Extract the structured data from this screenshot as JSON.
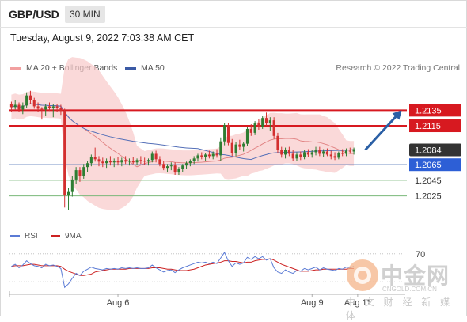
{
  "header": {
    "pair": "GBP/USD",
    "timeframe": "30 MIN",
    "datetime": "Tuesday, August 9, 2022 7:03:38 AM CET"
  },
  "legend": {
    "ma20_label": "MA 20 + Bollinger Bands",
    "ma50_label": "MA 50",
    "credit": "Research © 2022 Trading Central"
  },
  "rsi_legend": {
    "rsi_label": "RSI",
    "ma_label": "9MA"
  },
  "watermark": {
    "text": "中金网",
    "url": "CNGOLD.COM.CN",
    "sub": "中 文 财 经 新 媒 体"
  },
  "colors": {
    "bull": "#2e7d32",
    "bear": "#d32f2f",
    "bollinger": "#f8c9c9",
    "ma20": "#e08080",
    "ma50": "#5570b8",
    "resistance": "#d71920",
    "support_line": "#4a6fb5",
    "target_line": "#7ab87a",
    "current_tag": "#333333",
    "arrow": "#2a5fa5",
    "rsi": "#5b7bd5",
    "rsi_ma": "#cc2222"
  },
  "chart_data": {
    "type": "candlestick",
    "ylim": [
      1.199,
      1.2175
    ],
    "x_labels": [
      {
        "index": 28,
        "label": "Aug 6"
      },
      {
        "index": 79,
        "label": "Aug 9"
      },
      {
        "index": 91,
        "label": "Aug 11"
      }
    ],
    "levels": [
      {
        "label": "1.2135",
        "value": 1.2135,
        "kind": "resistance"
      },
      {
        "label": "1.2115",
        "value": 1.2115,
        "kind": "resistance"
      },
      {
        "label": "1.2084",
        "value": 1.2084,
        "kind": "current"
      },
      {
        "label": "1.2065",
        "value": 1.2065,
        "kind": "pivot"
      },
      {
        "label": "1.2045",
        "value": 1.2045,
        "kind": "support"
      },
      {
        "label": "1.2025",
        "value": 1.2025,
        "kind": "support"
      }
    ],
    "arrow": {
      "from_index": 93,
      "from_value": 1.2084,
      "to_index": 102,
      "to_value": 1.2132
    },
    "candles": [
      [
        1.2143,
        1.2146,
        1.2133,
        1.2139
      ],
      [
        1.2139,
        1.2148,
        1.2136,
        1.2142
      ],
      [
        1.2142,
        1.2145,
        1.2133,
        1.2136
      ],
      [
        1.2136,
        1.2145,
        1.213,
        1.2141
      ],
      [
        1.2141,
        1.2158,
        1.2138,
        1.2154
      ],
      [
        1.2154,
        1.216,
        1.2143,
        1.2148
      ],
      [
        1.2148,
        1.2151,
        1.2137,
        1.214
      ],
      [
        1.214,
        1.2145,
        1.2133,
        1.2137
      ],
      [
        1.2137,
        1.2139,
        1.2123,
        1.2136
      ],
      [
        1.2136,
        1.2143,
        1.2128,
        1.214
      ],
      [
        1.214,
        1.2145,
        1.2134,
        1.2138
      ],
      [
        1.2138,
        1.2143,
        1.2126,
        1.214
      ],
      [
        1.214,
        1.2143,
        1.2133,
        1.2138
      ],
      [
        1.2138,
        1.2142,
        1.2129,
        1.2134
      ],
      [
        1.2134,
        1.2137,
        1.201,
        1.2026
      ],
      [
        1.2026,
        1.2035,
        1.2007,
        1.203
      ],
      [
        1.203,
        1.205,
        1.2024,
        1.2046
      ],
      [
        1.2046,
        1.2062,
        1.204,
        1.2058
      ],
      [
        1.2058,
        1.2062,
        1.2043,
        1.205
      ],
      [
        1.205,
        1.2066,
        1.2047,
        1.2062
      ],
      [
        1.2062,
        1.207,
        1.2056,
        1.2067
      ],
      [
        1.2067,
        1.2078,
        1.2063,
        1.2075
      ],
      [
        1.2075,
        1.2087,
        1.2069,
        1.2072
      ],
      [
        1.2072,
        1.2076,
        1.2063,
        1.2069
      ],
      [
        1.2069,
        1.2074,
        1.2062,
        1.2067
      ],
      [
        1.2067,
        1.2073,
        1.2061,
        1.207
      ],
      [
        1.207,
        1.2076,
        1.2064,
        1.2068
      ],
      [
        1.2068,
        1.2073,
        1.2062,
        1.207
      ],
      [
        1.207,
        1.2075,
        1.2064,
        1.2068
      ],
      [
        1.2068,
        1.2074,
        1.2063,
        1.2071
      ],
      [
        1.2071,
        1.2076,
        1.2066,
        1.2069
      ],
      [
        1.2069,
        1.2073,
        1.2064,
        1.207
      ],
      [
        1.207,
        1.2075,
        1.2066,
        1.2068
      ],
      [
        1.2068,
        1.2073,
        1.2064,
        1.2071
      ],
      [
        1.2071,
        1.2076,
        1.2066,
        1.207
      ],
      [
        1.207,
        1.2074,
        1.2065,
        1.2069
      ],
      [
        1.2069,
        1.2073,
        1.2064,
        1.2071
      ],
      [
        1.2071,
        1.2082,
        1.2068,
        1.2079
      ],
      [
        1.2079,
        1.2083,
        1.2068,
        1.2072
      ],
      [
        1.2072,
        1.2076,
        1.2063,
        1.2066
      ],
      [
        1.2066,
        1.207,
        1.2058,
        1.2061
      ],
      [
        1.2061,
        1.2066,
        1.2055,
        1.2063
      ],
      [
        1.2063,
        1.2068,
        1.2058,
        1.2064
      ],
      [
        1.2064,
        1.2068,
        1.2052,
        1.2055
      ],
      [
        1.2055,
        1.2062,
        1.2052,
        1.206
      ],
      [
        1.206,
        1.2066,
        1.2056,
        1.2064
      ],
      [
        1.2064,
        1.2069,
        1.206,
        1.2067
      ],
      [
        1.2067,
        1.2072,
        1.2063,
        1.207
      ],
      [
        1.207,
        1.2076,
        1.2066,
        1.2073
      ],
      [
        1.2073,
        1.2079,
        1.2069,
        1.2077
      ],
      [
        1.2077,
        1.2081,
        1.2072,
        1.2075
      ],
      [
        1.2075,
        1.208,
        1.207,
        1.2078
      ],
      [
        1.2078,
        1.2083,
        1.2073,
        1.2076
      ],
      [
        1.2076,
        1.2082,
        1.2072,
        1.2079
      ],
      [
        1.2079,
        1.2085,
        1.2074,
        1.2077
      ],
      [
        1.2077,
        1.21,
        1.207,
        1.2095
      ],
      [
        1.2095,
        1.2119,
        1.209,
        1.2116
      ],
      [
        1.2116,
        1.2119,
        1.209,
        1.2093
      ],
      [
        1.2093,
        1.2098,
        1.2076,
        1.208
      ],
      [
        1.208,
        1.2094,
        1.2076,
        1.2091
      ],
      [
        1.2091,
        1.2097,
        1.2084,
        1.2088
      ],
      [
        1.2088,
        1.2094,
        1.2082,
        1.2092
      ],
      [
        1.2092,
        1.2114,
        1.2089,
        1.2111
      ],
      [
        1.2111,
        1.2117,
        1.2102,
        1.2106
      ],
      [
        1.2106,
        1.2121,
        1.2103,
        1.2118
      ],
      [
        1.2118,
        1.2124,
        1.211,
        1.2114
      ],
      [
        1.2114,
        1.2128,
        1.2111,
        1.2125
      ],
      [
        1.2125,
        1.2132,
        1.2115,
        1.2119
      ],
      [
        1.2119,
        1.2126,
        1.2108,
        1.2122
      ],
      [
        1.2122,
        1.2126,
        1.2098,
        1.2102
      ],
      [
        1.2102,
        1.2106,
        1.208,
        1.2084
      ],
      [
        1.2084,
        1.2088,
        1.2074,
        1.2078
      ],
      [
        1.2078,
        1.2087,
        1.2073,
        1.2084
      ],
      [
        1.2084,
        1.2088,
        1.2076,
        1.2079
      ],
      [
        1.2079,
        1.2084,
        1.207,
        1.2073
      ],
      [
        1.2073,
        1.2081,
        1.207,
        1.2078
      ],
      [
        1.2078,
        1.2082,
        1.2071,
        1.2075
      ],
      [
        1.2075,
        1.2084,
        1.2072,
        1.2081
      ],
      [
        1.2081,
        1.2085,
        1.2075,
        1.2078
      ],
      [
        1.2078,
        1.2084,
        1.2074,
        1.2081
      ],
      [
        1.2081,
        1.2088,
        1.2077,
        1.2084
      ],
      [
        1.2084,
        1.2088,
        1.2076,
        1.2079
      ],
      [
        1.2079,
        1.2085,
        1.2075,
        1.2082
      ],
      [
        1.2082,
        1.2086,
        1.2076,
        1.2078
      ],
      [
        1.2078,
        1.2083,
        1.2072,
        1.2076
      ],
      [
        1.2076,
        1.2081,
        1.2071,
        1.2074
      ],
      [
        1.2074,
        1.2082,
        1.2072,
        1.208
      ],
      [
        1.208,
        1.2085,
        1.2076,
        1.2079
      ],
      [
        1.2079,
        1.2086,
        1.2076,
        1.2083
      ],
      [
        1.2083,
        1.2087,
        1.2079,
        1.2082
      ],
      [
        1.2082,
        1.2087,
        1.2078,
        1.2085
      ]
    ],
    "rsi": {
      "ylim": [
        20,
        80
      ],
      "level_labels": [
        {
          "label": "70",
          "value": 70
        }
      ],
      "rsi_values": [
        52,
        55,
        50,
        54,
        60,
        56,
        53,
        52,
        50,
        55,
        53,
        54,
        52,
        49,
        22,
        27,
        35,
        42,
        39,
        45,
        48,
        51,
        49,
        48,
        47,
        49,
        48,
        49,
        48,
        50,
        49,
        50,
        49,
        50,
        49,
        49,
        50,
        54,
        50,
        47,
        44,
        46,
        47,
        43,
        47,
        50,
        52,
        54,
        56,
        58,
        57,
        58,
        56,
        58,
        56,
        64,
        72,
        60,
        52,
        57,
        55,
        57,
        65,
        62,
        66,
        63,
        66,
        61,
        63,
        50,
        44,
        42,
        47,
        44,
        42,
        46,
        45,
        49,
        47,
        49,
        51,
        47,
        50,
        48,
        47,
        46,
        49,
        48,
        51,
        50,
        52
      ],
      "ma_values": [
        52,
        53,
        53,
        53,
        54,
        55,
        55,
        54,
        53,
        53,
        53,
        53,
        53,
        52,
        48,
        45,
        43,
        41,
        39,
        39,
        40,
        41,
        44,
        45,
        46,
        47,
        48,
        48,
        48,
        48,
        48,
        49,
        49,
        49,
        49,
        49,
        49,
        50,
        50,
        50,
        49,
        48,
        48,
        47,
        46,
        46,
        46,
        47,
        48,
        50,
        52,
        54,
        55,
        56,
        57,
        58,
        60,
        60,
        59,
        59,
        58,
        57,
        58,
        58,
        60,
        61,
        62,
        62,
        63,
        61,
        58,
        55,
        53,
        51,
        49,
        47,
        45,
        45,
        45,
        46,
        47,
        47,
        48,
        48,
        48,
        48,
        48,
        48,
        48,
        49,
        49
      ]
    }
  }
}
